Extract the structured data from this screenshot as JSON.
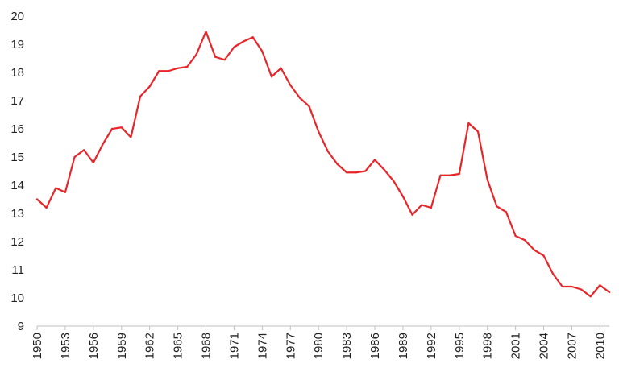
{
  "colors": {
    "line": "#e8262a",
    "axis": "#bfbfbf",
    "text": "#222222",
    "background": "#ffffff"
  },
  "chart_data": {
    "type": "line",
    "title": "",
    "xlabel": "",
    "ylabel": "",
    "grid": false,
    "legend": "none",
    "ylim": [
      9,
      20
    ],
    "y_ticks": [
      9,
      10,
      11,
      12,
      13,
      14,
      15,
      16,
      17,
      18,
      19,
      20
    ],
    "x_range": [
      1950,
      2011
    ],
    "x_tick_labels": [
      "1950",
      "1953",
      "1956",
      "1959",
      "1962",
      "1965",
      "1968",
      "1971",
      "1974",
      "1977",
      "1980",
      "1983",
      "1986",
      "1989",
      "1992",
      "1995",
      "1998",
      "2001",
      "2004",
      "2007",
      "2010"
    ],
    "series": [
      {
        "color": "#e8262a",
        "x": [
          1950,
          1951,
          1952,
          1953,
          1954,
          1955,
          1956,
          1957,
          1958,
          1959,
          1960,
          1961,
          1962,
          1963,
          1964,
          1965,
          1966,
          1967,
          1968,
          1969,
          1970,
          1971,
          1972,
          1973,
          1974,
          1975,
          1976,
          1977,
          1978,
          1979,
          1980,
          1981,
          1982,
          1983,
          1984,
          1985,
          1986,
          1987,
          1988,
          1989,
          1990,
          1991,
          1992,
          1993,
          1994,
          1995,
          1996,
          1997,
          1998,
          1999,
          2000,
          2001,
          2002,
          2003,
          2004,
          2005,
          2006,
          2007,
          2008,
          2009,
          2010,
          2011
        ],
        "values": [
          13.5,
          13.2,
          13.9,
          13.75,
          15.0,
          15.25,
          14.8,
          15.45,
          16.0,
          16.05,
          15.7,
          17.15,
          17.5,
          18.05,
          18.05,
          18.15,
          18.2,
          18.65,
          19.45,
          18.55,
          18.45,
          18.9,
          19.1,
          19.25,
          18.75,
          17.85,
          18.15,
          17.55,
          17.1,
          16.8,
          15.9,
          15.2,
          14.75,
          14.45,
          14.45,
          14.5,
          14.9,
          14.55,
          14.15,
          13.6,
          12.95,
          13.3,
          13.2,
          14.35,
          14.35,
          14.4,
          16.2,
          15.9,
          14.2,
          13.25,
          13.05,
          12.2,
          12.05,
          11.7,
          11.5,
          10.85,
          10.4,
          10.4,
          10.3,
          10.05,
          10.45,
          10.2
        ]
      }
    ]
  }
}
